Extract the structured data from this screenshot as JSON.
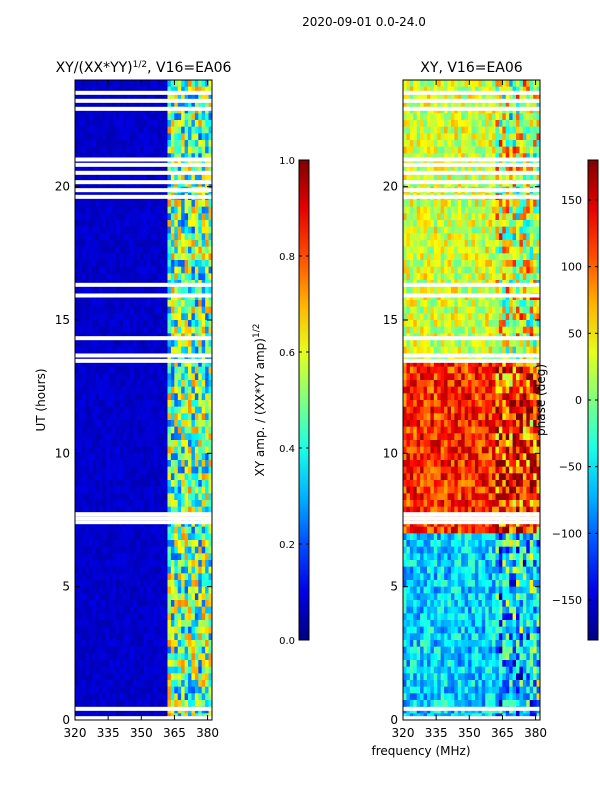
{
  "figure": {
    "suptitle": "2020-09-01 0.0-24.0",
    "xlabel": "frequency (MHz)"
  },
  "chart_data": [
    {
      "type": "heatmap",
      "title": "XY/(XX*YY)",
      "title_exp": "1/2",
      "title_suffix": ", V16=EA06",
      "xlabel": "",
      "ylabel": "UT (hours)",
      "xlim": [
        320,
        382
      ],
      "ylim": [
        0,
        24
      ],
      "xticks": [
        "320",
        "335",
        "350",
        "365",
        "380"
      ],
      "xtick_values": [
        320,
        335,
        350,
        365,
        380
      ],
      "yticks": [
        "0",
        "5",
        "10",
        "15",
        "20"
      ],
      "ytick_values": [
        0,
        5,
        10,
        15,
        20
      ],
      "colormap": "jet",
      "colorbar": {
        "label": "XY amp. / (XX*YY amp)",
        "label_exp": "1/2",
        "range": [
          0.0,
          1.0
        ],
        "ticks": [
          "0.0",
          "0.2",
          "0.4",
          "0.6",
          "0.8",
          "1.0"
        ],
        "tick_values": [
          0.0,
          0.2,
          0.4,
          0.6,
          0.8,
          1.0
        ]
      },
      "masked_ut_hours": [
        0.05,
        0.4,
        7.4,
        7.55,
        7.7,
        13.45,
        13.65,
        14.3,
        15.9,
        16.3,
        19.6,
        19.85,
        20.15,
        20.5,
        20.8,
        21.0,
        22.9,
        23.2,
        23.5
      ],
      "description_features": {
        "low_band_value": 0.05,
        "high_band_start_mhz": 362,
        "high_band_value_range": [
          0.2,
          0.75
        ]
      }
    },
    {
      "type": "heatmap",
      "title": "XY, V16=EA06",
      "xlabel": "",
      "ylabel": "",
      "xlim": [
        320,
        382
      ],
      "ylim": [
        0,
        24
      ],
      "xticks": [
        "320",
        "335",
        "350",
        "365",
        "380"
      ],
      "xtick_values": [
        320,
        335,
        350,
        365,
        380
      ],
      "yticks": [
        "0",
        "5",
        "10",
        "15",
        "20"
      ],
      "ytick_values": [
        0,
        5,
        10,
        15,
        20
      ],
      "colormap": "jet",
      "colorbar": {
        "label": "phase (deg)",
        "range": [
          -180,
          180
        ],
        "ticks": [
          "−150",
          "−100",
          "−50",
          "0",
          "50",
          "100",
          "150"
        ],
        "tick_values": [
          -150,
          -100,
          -50,
          0,
          50,
          100,
          150
        ]
      },
      "masked_ut_hours": [
        0.05,
        0.4,
        7.4,
        7.55,
        7.7,
        13.45,
        13.65,
        14.3,
        15.9,
        16.3,
        19.6,
        19.85,
        20.15,
        20.5,
        20.8,
        21.0,
        22.9,
        23.2,
        23.5
      ],
      "description_features": {
        "phase_0_to_7h": -60,
        "phase_8_to_13h": 120,
        "phase_14_to_24h": 30
      }
    }
  ]
}
